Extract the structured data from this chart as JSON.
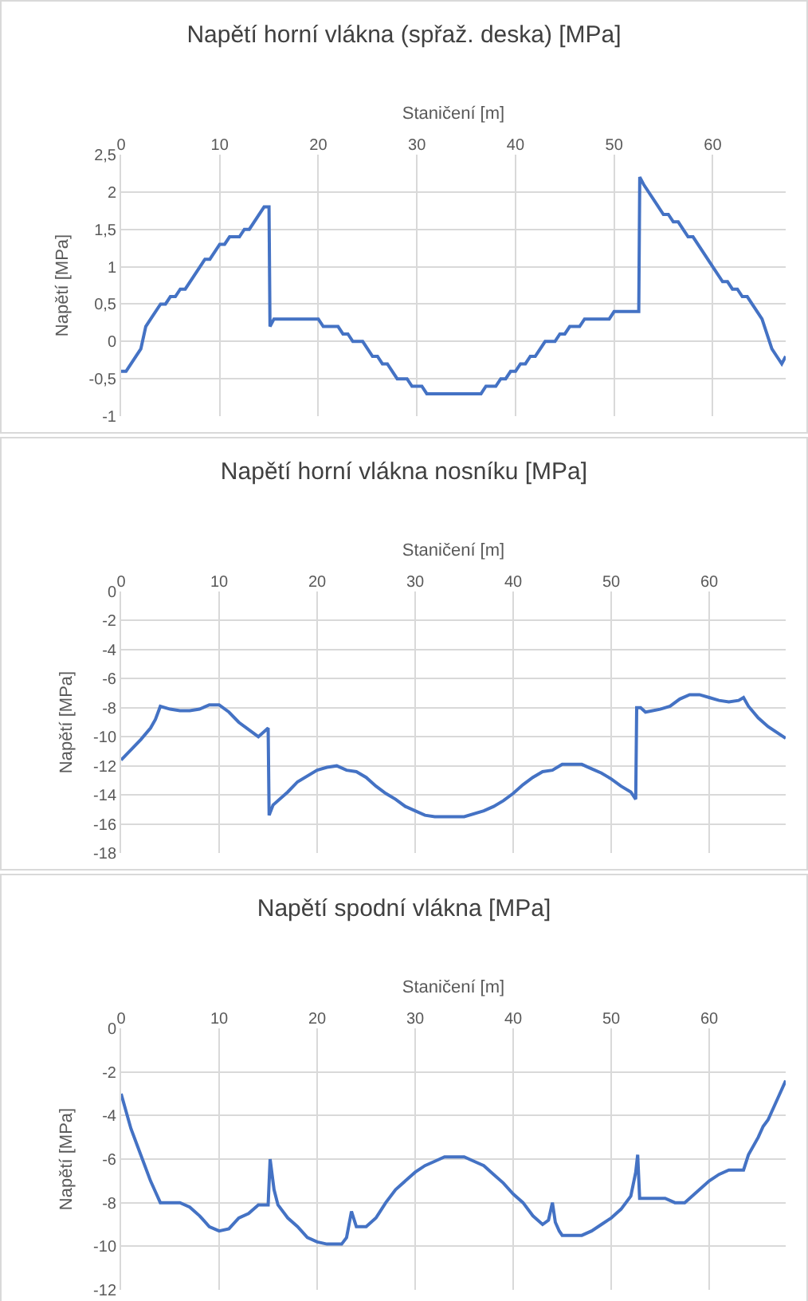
{
  "chart_data": [
    {
      "type": "line",
      "title": "Napětí horní vlákna (spřaž. deska) [MPa]",
      "xlabel": "Staničení [m]",
      "ylabel": "Napětí [MPa]",
      "grid": true,
      "marker": "none",
      "line_style": "solid",
      "xlim": [
        0,
        67.4
      ],
      "xticks": [
        0,
        10,
        20,
        30,
        40,
        50,
        60
      ],
      "ylim": [
        -1,
        2.5
      ],
      "yticks": [
        {
          "value": -1,
          "label": "-1"
        },
        {
          "value": -0.5,
          "label": "-0,5"
        },
        {
          "value": 0,
          "label": "0"
        },
        {
          "value": 0.5,
          "label": "0,5"
        },
        {
          "value": 1,
          "label": "1"
        },
        {
          "value": 1.5,
          "label": "1,5"
        },
        {
          "value": 2,
          "label": "2"
        },
        {
          "value": 2.5,
          "label": "2,5"
        }
      ],
      "series": [
        {
          "color": "#4472c4",
          "x": [
            0,
            0.5,
            1,
            2,
            2.5,
            3,
            4,
            4.5,
            5,
            5.5,
            6,
            6.5,
            8,
            8.5,
            9,
            10,
            10.5,
            11,
            12,
            12.5,
            13,
            14.5,
            15,
            15.1,
            15.5,
            20,
            20.5,
            22,
            22.5,
            23,
            23.5,
            24.5,
            25.5,
            26,
            26.5,
            27,
            28,
            29,
            29.5,
            30.5,
            31,
            36.5,
            37,
            38,
            38.5,
            39,
            39.5,
            40,
            40.5,
            41,
            41.5,
            42,
            43,
            44,
            44.5,
            45,
            45.5,
            46.5,
            47,
            49.5,
            50,
            52.5,
            52.6,
            53,
            55,
            55.5,
            56,
            56.5,
            57.5,
            58,
            60,
            61,
            61.5,
            62,
            62.5,
            63,
            63.5,
            65,
            66,
            66.5,
            67,
            67.4
          ],
          "values": [
            -0.4,
            -0.4,
            -0.3,
            -0.1,
            0.2,
            0.3,
            0.5,
            0.5,
            0.6,
            0.6,
            0.7,
            0.7,
            1.0,
            1.1,
            1.1,
            1.3,
            1.3,
            1.4,
            1.4,
            1.5,
            1.5,
            1.8,
            1.8,
            0.2,
            0.3,
            0.3,
            0.2,
            0.2,
            0.1,
            0.1,
            0,
            0,
            -0.2,
            -0.2,
            -0.3,
            -0.3,
            -0.5,
            -0.5,
            -0.6,
            -0.6,
            -0.7,
            -0.7,
            -0.6,
            -0.6,
            -0.5,
            -0.5,
            -0.4,
            -0.4,
            -0.3,
            -0.3,
            -0.2,
            -0.2,
            0,
            0,
            0.1,
            0.1,
            0.2,
            0.2,
            0.3,
            0.3,
            0.4,
            0.4,
            2.2,
            2.1,
            1.7,
            1.7,
            1.6,
            1.6,
            1.4,
            1.4,
            1.0,
            0.8,
            0.8,
            0.7,
            0.7,
            0.6,
            0.6,
            0.3,
            -0.1,
            -0.2,
            -0.3,
            -0.2
          ]
        }
      ]
    },
    {
      "type": "line",
      "title": "Napětí horní vlákna nosníku [MPa]",
      "xlabel": "Staničení [m]",
      "ylabel": "Napětí [MPa]",
      "grid": true,
      "marker": "none",
      "line_style": "solid",
      "xlim": [
        0,
        67.8
      ],
      "xticks": [
        0,
        10,
        20,
        30,
        40,
        50,
        60
      ],
      "ylim": [
        -18,
        0
      ],
      "yticks": [
        -18,
        -16,
        -14,
        -12,
        -10,
        -8,
        -6,
        -4,
        -2,
        0
      ],
      "series": [
        {
          "color": "#4472c4",
          "x": [
            0,
            2,
            3,
            3.5,
            4,
            5,
            6,
            7,
            8,
            9,
            10,
            11,
            12,
            13,
            14,
            15,
            15.1,
            15.5,
            17,
            18,
            20,
            21,
            22,
            23,
            24,
            25,
            26,
            27,
            28,
            29,
            30,
            31,
            32,
            35,
            37,
            38,
            39,
            40,
            41,
            42,
            43,
            44,
            45,
            47,
            48,
            49,
            50,
            51,
            52,
            52.5,
            52.6,
            53,
            53.5,
            55,
            56,
            57,
            58,
            59,
            60,
            61,
            62,
            63,
            63.5,
            64,
            65,
            66,
            67.8
          ],
          "values": [
            -11.6,
            -10.2,
            -9.4,
            -8.8,
            -7.9,
            -8.1,
            -8.2,
            -8.2,
            -8.1,
            -7.8,
            -7.8,
            -8.3,
            -9.0,
            -9.5,
            -10.0,
            -9.4,
            -15.4,
            -14.7,
            -13.8,
            -13.1,
            -12.3,
            -12.1,
            -12.0,
            -12.3,
            -12.4,
            -12.8,
            -13.4,
            -13.9,
            -14.3,
            -14.8,
            -15.1,
            -15.4,
            -15.5,
            -15.5,
            -15.1,
            -14.8,
            -14.4,
            -13.9,
            -13.3,
            -12.8,
            -12.4,
            -12.3,
            -11.9,
            -11.9,
            -12.2,
            -12.5,
            -12.9,
            -13.4,
            -13.8,
            -14.3,
            -8.0,
            -8.0,
            -8.3,
            -8.1,
            -7.9,
            -7.4,
            -7.1,
            -7.1,
            -7.3,
            -7.5,
            -7.6,
            -7.5,
            -7.3,
            -7.9,
            -8.7,
            -9.3,
            -10.1
          ]
        }
      ]
    },
    {
      "type": "line",
      "title": "Napětí spodní vlákna [MPa]",
      "xlabel": "Staničení [m]",
      "ylabel": "Napětí [MPa]",
      "grid": true,
      "marker": "none",
      "line_style": "solid",
      "xlim": [
        0,
        67.8
      ],
      "xticks": [
        0,
        10,
        20,
        30,
        40,
        50,
        60
      ],
      "ylim": [
        -12,
        0
      ],
      "yticks": [
        -12,
        -10,
        -8,
        -6,
        -4,
        -2,
        0
      ],
      "series": [
        {
          "color": "#4472c4",
          "x": [
            0,
            1,
            2,
            3,
            3.5,
            4,
            6,
            7,
            8,
            9,
            10,
            11,
            12,
            13,
            14,
            15,
            15.2,
            15.6,
            16,
            17,
            18,
            19,
            20,
            21,
            22.5,
            23,
            23.5,
            24,
            25,
            26,
            27,
            28,
            29,
            30,
            31,
            32,
            33,
            35,
            36,
            37,
            38,
            39,
            40,
            41,
            42,
            43,
            43.6,
            44,
            44.3,
            44.7,
            45,
            47,
            48,
            49,
            50,
            51,
            52,
            52.5,
            52.7,
            52.9,
            55.5,
            56.5,
            57.5,
            58,
            59,
            60,
            61,
            62,
            63.5,
            64,
            65,
            65.5,
            66,
            67,
            67.8
          ],
          "values": [
            -3,
            -4.6,
            -5.8,
            -7.0,
            -7.5,
            -8.0,
            -8.0,
            -8.2,
            -8.6,
            -9.1,
            -9.3,
            -9.2,
            -8.7,
            -8.5,
            -8.1,
            -8.1,
            -6.0,
            -7.4,
            -8.1,
            -8.7,
            -9.1,
            -9.6,
            -9.8,
            -9.9,
            -9.9,
            -9.6,
            -8.4,
            -9.1,
            -9.1,
            -8.7,
            -8.0,
            -7.4,
            -7.0,
            -6.6,
            -6.3,
            -6.1,
            -5.9,
            -5.9,
            -6.1,
            -6.3,
            -6.7,
            -7.1,
            -7.6,
            -8.0,
            -8.6,
            -9.0,
            -8.8,
            -8.0,
            -8.9,
            -9.3,
            -9.5,
            -9.5,
            -9.3,
            -9.0,
            -8.7,
            -8.3,
            -7.7,
            -6.6,
            -5.8,
            -7.8,
            -7.8,
            -8.0,
            -8.0,
            -7.8,
            -7.4,
            -7.0,
            -6.7,
            -6.5,
            -6.5,
            -5.8,
            -5.0,
            -4.5,
            -4.2,
            -3.2,
            -2.4
          ]
        }
      ]
    }
  ]
}
